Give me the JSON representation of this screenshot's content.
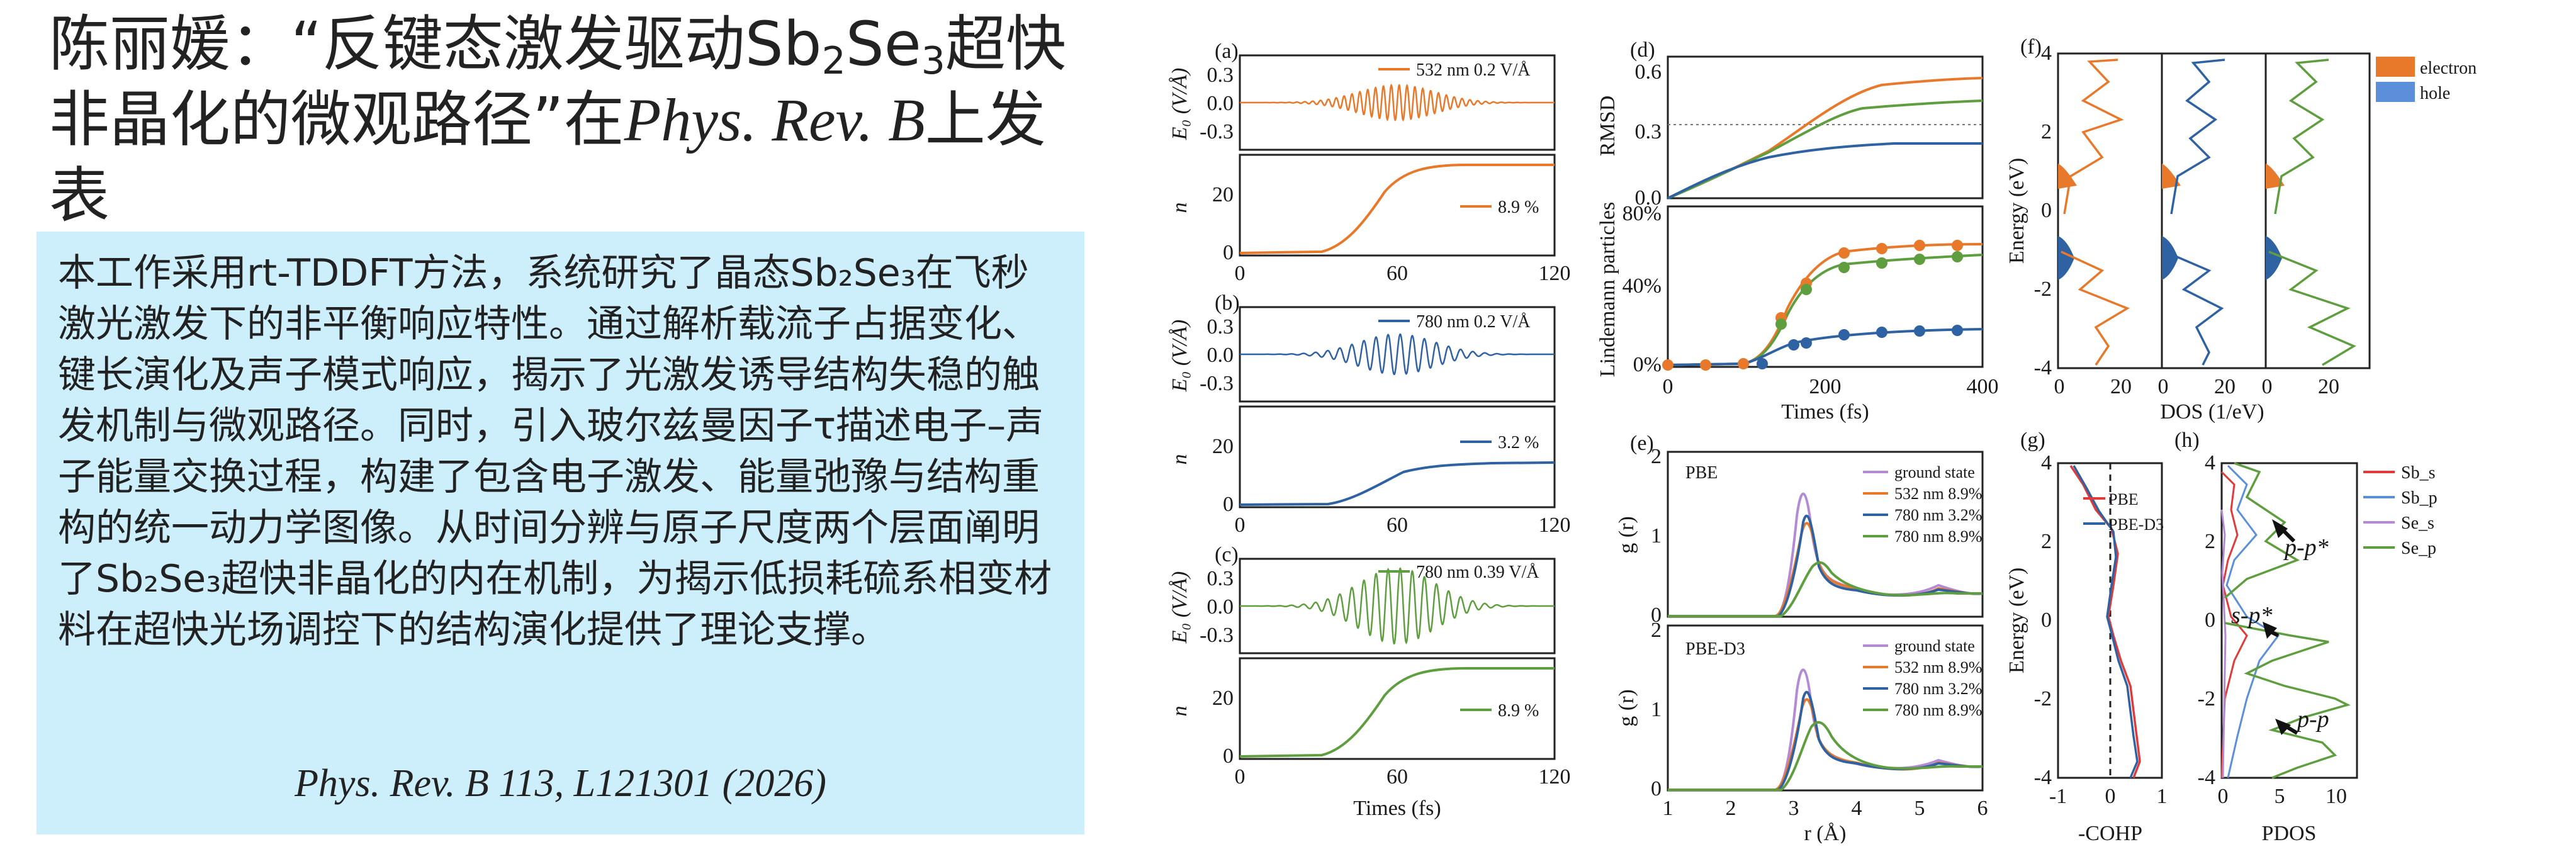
{
  "title": {
    "prefix": "陈丽媛：“反键态激发驱动Sb",
    "sub1": "2",
    "mid": "Se",
    "sub2": "3",
    "line1_end": "超快",
    "line2_start": "非晶化的微观路径”在",
    "journal": "Phys. Rev. B",
    "line2_end": "上发",
    "line3": "表"
  },
  "abstract": {
    "body": "本工作采用rt-TDDFT方法，系统研究了晶态Sb₂Se₃在飞秒激光激发下的非平衡响应特性。通过解析载流子占据变化、键长演化及声子模式响应，揭示了光激发诱导结构失稳的触发机制与微观路径。同时，引入玻尔兹曼因子τ描述电子–声子能量交换过程，构建了包含电子激发、能量弛豫与结构重构的统一动力学图像。从时间分辨与原子尺度两个层面阐明了Sb₂Se₃超快非晶化的内在机制，为揭示低损耗硫系相变材料在超快光场调控下的结构演化提供了理论支撑。",
    "citation": "Phys. Rev. B 113, L121301 (2026)"
  },
  "colors": {
    "orange": "#e8792b",
    "blue": "#2f62a3",
    "green": "#5f9e3f",
    "purple": "#b48ad6",
    "red": "#e03a3a",
    "light_blue": "#5b8fd9",
    "box_bg": "#cdeefb"
  },
  "figure": {
    "panel_a": {
      "label": "(a)",
      "legend": "532 nm 0.2 V/Å",
      "n_legend": "8.9 %"
    },
    "panel_b": {
      "label": "(b)",
      "legend": "780 nm 0.2 V/Å",
      "n_legend": "3.2 %"
    },
    "panel_c": {
      "label": "(c)",
      "legend": "780 nm 0.39 V/Å",
      "n_legend": "8.9 %"
    },
    "e0_label": "E₀ (V/Å)",
    "n_label": "n",
    "e0_ticks": [
      "0.3",
      "0.0",
      "-0.3"
    ],
    "n_ticks": [
      "20",
      "0"
    ],
    "time_ticks": [
      "0",
      "60",
      "120"
    ],
    "time_xlabel": "Times (fs)",
    "panel_d": {
      "label": "(d)",
      "rmsd_label": "RMSD",
      "rmsd_ticks": [
        "0.6",
        "0.3",
        "0.0"
      ],
      "lind_label": "Lindemann particles",
      "lind_ticks": [
        "80%",
        "40%",
        "0%"
      ],
      "x_ticks": [
        "0",
        "200",
        "400"
      ],
      "xlabel": "Times (fs)"
    },
    "panel_e": {
      "label": "(e)",
      "top_title": "PBE",
      "bottom_title": "PBE-D3",
      "ylabel": "g (r)",
      "y_ticks": [
        "2",
        "1",
        "0"
      ],
      "x_ticks": [
        "1",
        "2",
        "3",
        "4",
        "5",
        "6"
      ],
      "xlabel": "r (Å)",
      "legend": [
        "ground state",
        "532 nm 8.9%",
        "780 nm 3.2%",
        "780 nm 8.9%"
      ]
    },
    "panel_f": {
      "label": "(f)",
      "ylabel": "Energy (eV)",
      "y_ticks": [
        "4",
        "2",
        "0",
        "-2",
        "-4"
      ],
      "x_ticks": [
        "0",
        "20",
        "0",
        "20",
        "0",
        "20"
      ],
      "xlabel": "DOS (1/eV)",
      "legend": [
        "electron",
        "hole"
      ]
    },
    "panel_g": {
      "label": "(g)",
      "ylabel": "Energy (eV)",
      "y_ticks": [
        "4",
        "2",
        "0",
        "-2",
        "-4"
      ],
      "x_ticks": [
        "-1",
        "0",
        "1"
      ],
      "xlabel": "-COHP",
      "legend": [
        "PBE",
        "PBE-D3"
      ]
    },
    "panel_h": {
      "label": "(h)",
      "x_ticks": [
        "0",
        "5",
        "10"
      ],
      "xlabel": "PDOS",
      "legend": [
        "Sb_s",
        "Sb_p",
        "Se_s",
        "Se_p"
      ],
      "annot1": "p-p*",
      "annot2": "s-p*",
      "annot3": "p-p"
    }
  }
}
